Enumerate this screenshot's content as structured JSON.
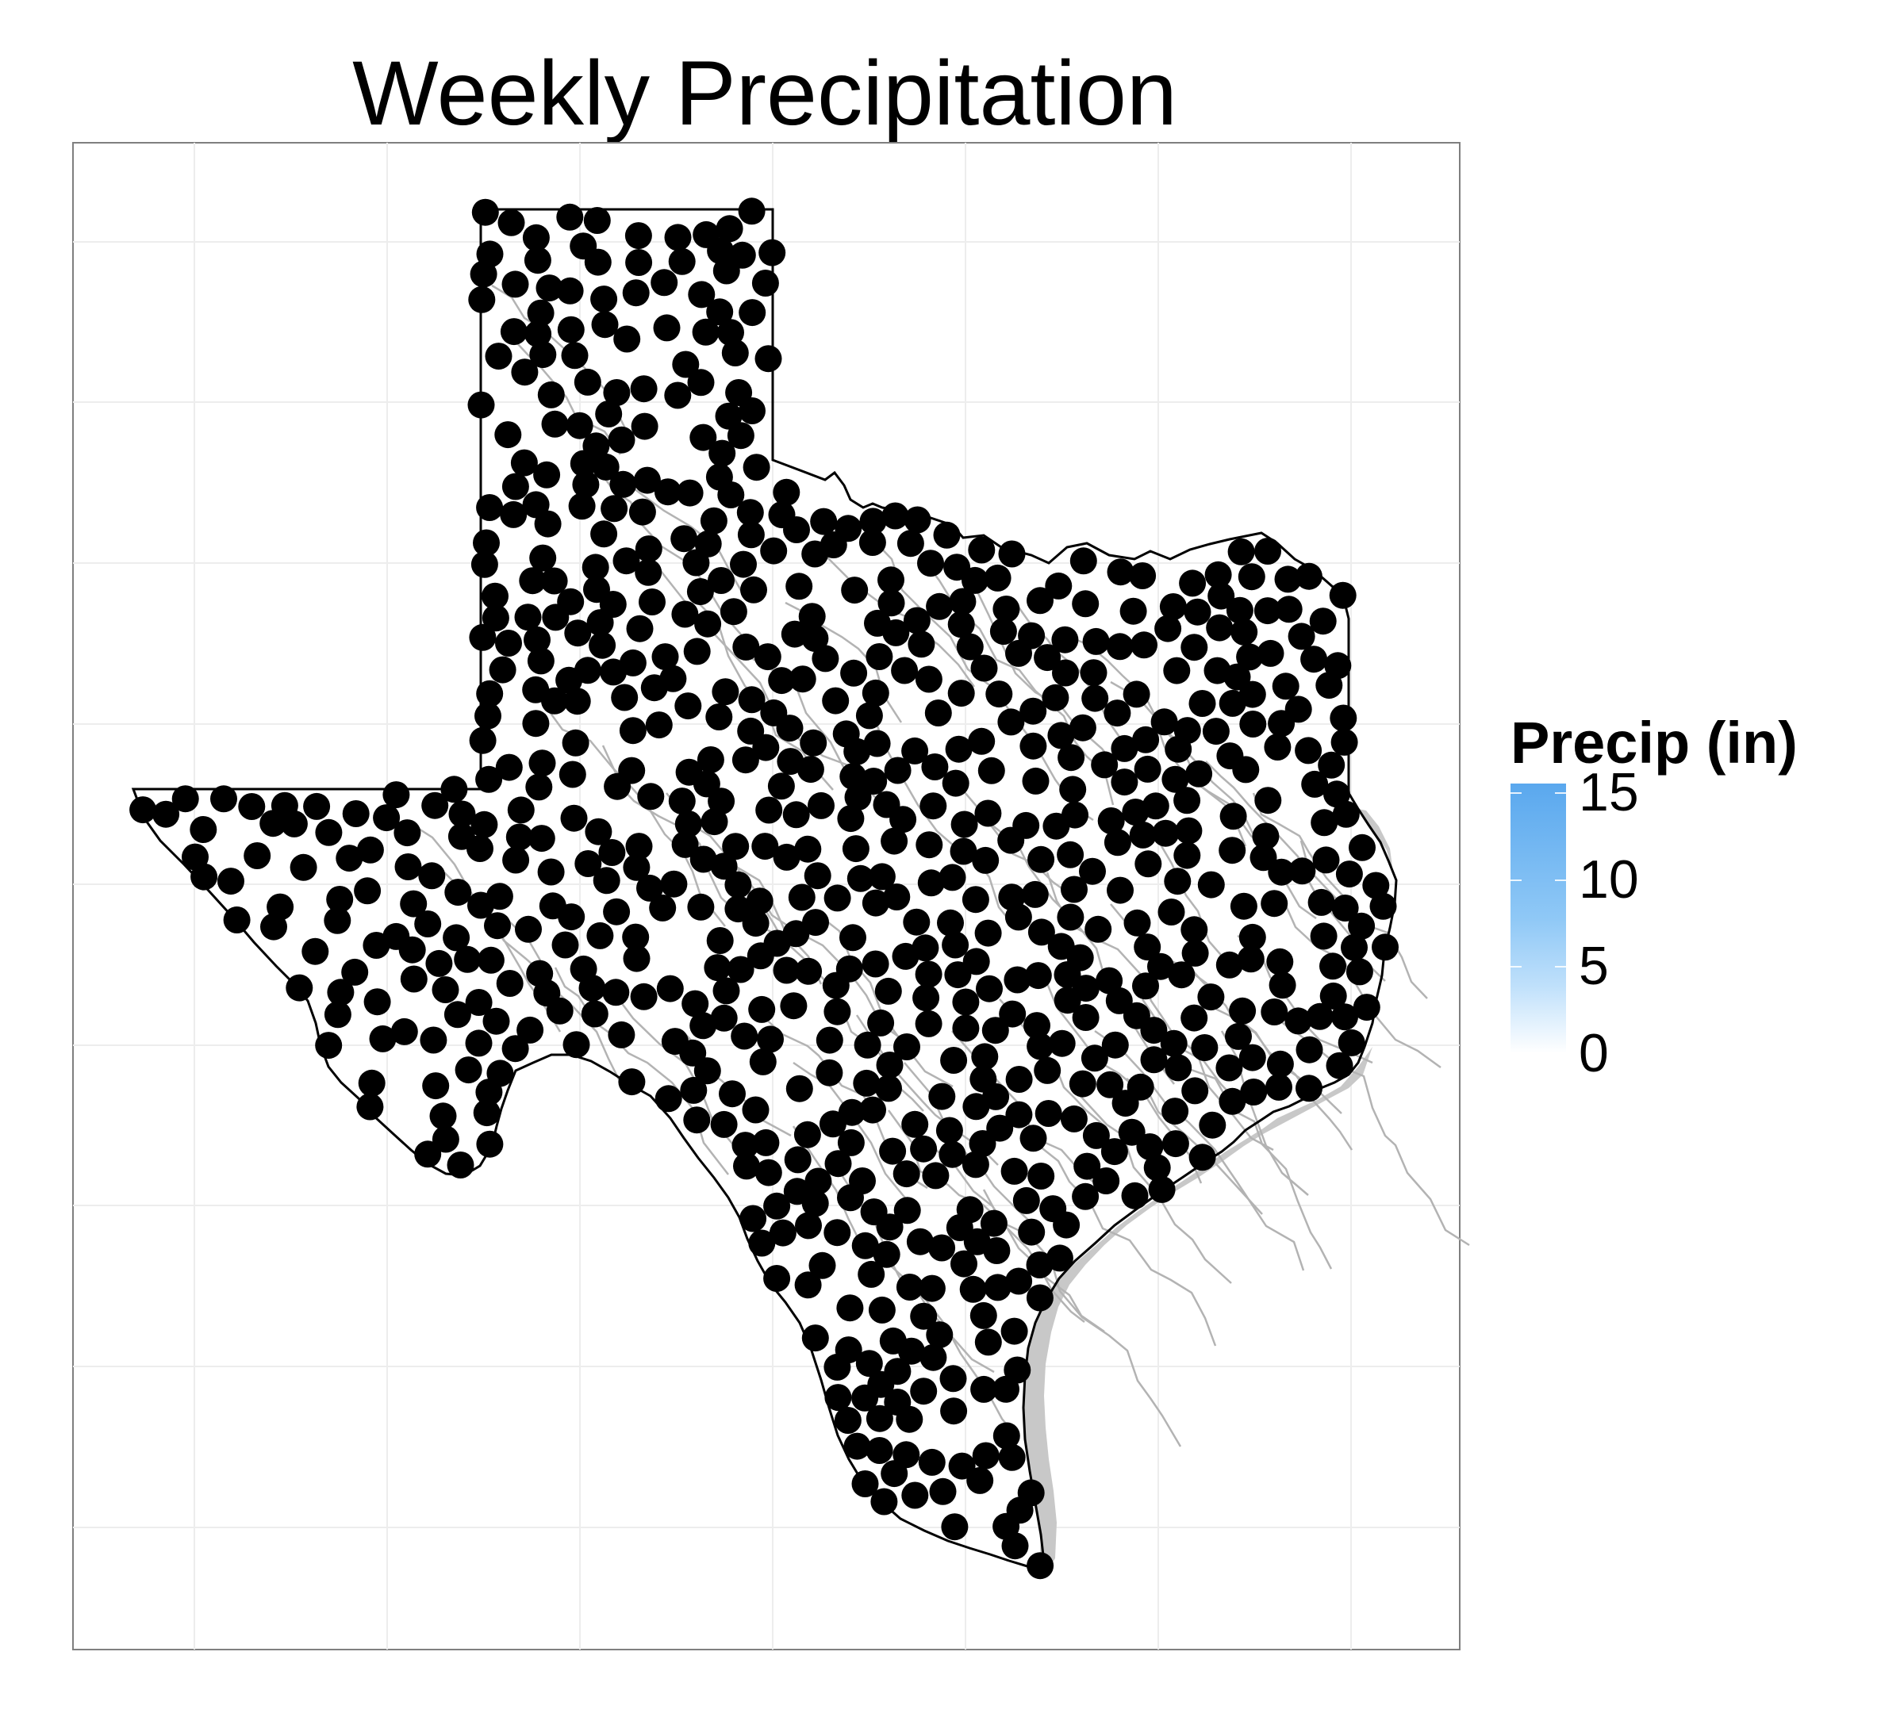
{
  "chart": {
    "title": "Weekly Precipitation",
    "type": "map-scatter",
    "region": "Texas",
    "point_color": "#000000",
    "state_outline_color": "#000000",
    "river_color": "#b3b3b3",
    "grid": "on, no axis labels"
  },
  "legend": {
    "title": "Precip (in)",
    "ticks": [
      "0",
      "5",
      "10",
      "15"
    ],
    "tick_values": [
      0,
      5,
      10,
      15
    ],
    "max": 15.5,
    "gradient_low": "#ffffff",
    "gradient_high": "#5aa8ee"
  }
}
